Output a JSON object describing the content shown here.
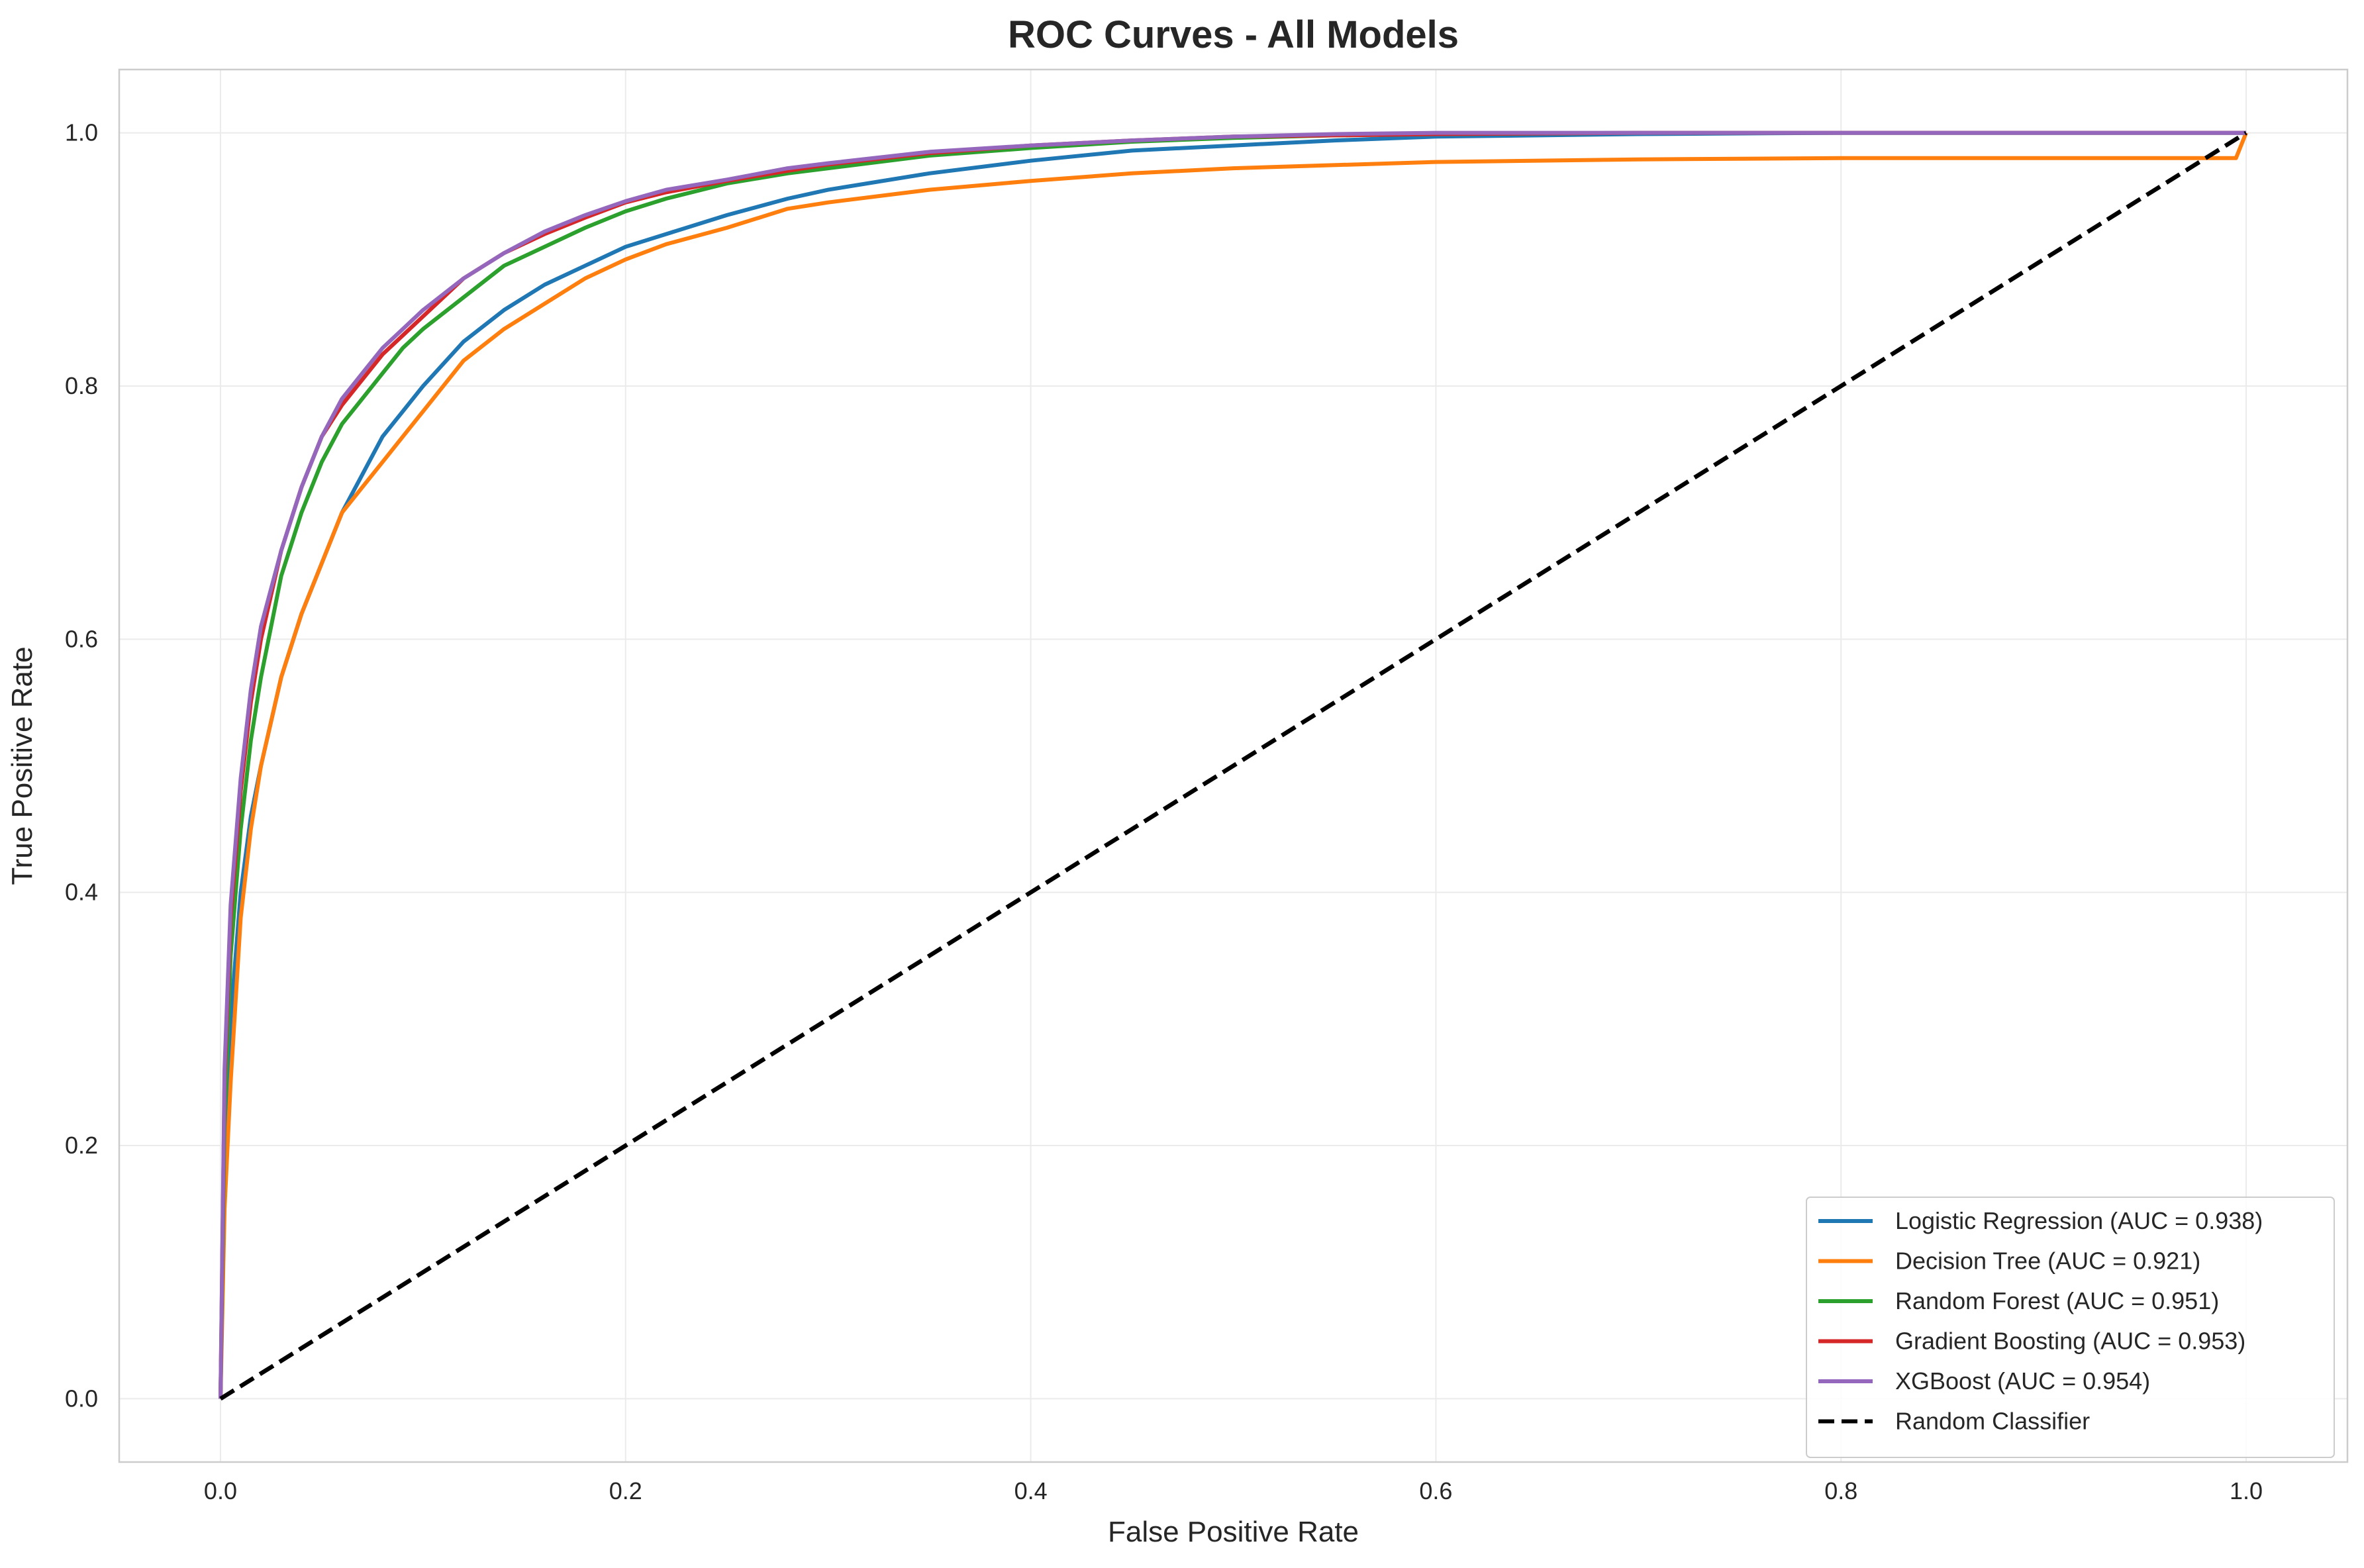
{
  "chart_data": {
    "type": "line",
    "title": "ROC Curves - All Models",
    "xlabel": "False Positive Rate",
    "ylabel": "True Positive Rate",
    "xlim": [
      -0.05,
      1.05
    ],
    "ylim": [
      -0.05,
      1.05
    ],
    "xticks": [
      "0.0",
      "0.2",
      "0.4",
      "0.6",
      "0.8",
      "1.0"
    ],
    "yticks": [
      "0.0",
      "0.2",
      "0.4",
      "0.6",
      "0.8",
      "1.0"
    ],
    "grid": true,
    "legend_position": "lower-right",
    "series": [
      {
        "name": "Logistic Regression (AUC = 0.938)",
        "color": "#1f77b4",
        "x": [
          0,
          0.002,
          0.005,
          0.01,
          0.015,
          0.02,
          0.03,
          0.04,
          0.05,
          0.06,
          0.07,
          0.08,
          0.09,
          0.1,
          0.12,
          0.14,
          0.16,
          0.18,
          0.2,
          0.22,
          0.25,
          0.28,
          0.3,
          0.35,
          0.4,
          0.45,
          0.5,
          0.55,
          0.6,
          0.7,
          0.8,
          0.9,
          1.0
        ],
        "y": [
          0,
          0.2,
          0.3,
          0.4,
          0.46,
          0.5,
          0.57,
          0.62,
          0.66,
          0.7,
          0.73,
          0.76,
          0.78,
          0.8,
          0.835,
          0.86,
          0.88,
          0.895,
          0.91,
          0.92,
          0.935,
          0.948,
          0.955,
          0.968,
          0.978,
          0.986,
          0.99,
          0.994,
          0.997,
          0.999,
          1.0,
          1.0,
          1.0
        ]
      },
      {
        "name": "Decision Tree (AUC = 0.921)",
        "color": "#ff7f0e",
        "x": [
          0,
          0.002,
          0.005,
          0.01,
          0.015,
          0.02,
          0.03,
          0.04,
          0.05,
          0.06,
          0.07,
          0.08,
          0.09,
          0.1,
          0.12,
          0.14,
          0.16,
          0.18,
          0.2,
          0.22,
          0.25,
          0.28,
          0.3,
          0.35,
          0.4,
          0.45,
          0.5,
          0.6,
          0.7,
          0.8,
          0.9,
          0.995,
          1.0
        ],
        "y": [
          0,
          0.15,
          0.25,
          0.38,
          0.45,
          0.5,
          0.57,
          0.62,
          0.66,
          0.7,
          0.72,
          0.74,
          0.76,
          0.78,
          0.82,
          0.845,
          0.865,
          0.885,
          0.9,
          0.912,
          0.925,
          0.94,
          0.945,
          0.955,
          0.962,
          0.968,
          0.972,
          0.977,
          0.979,
          0.98,
          0.98,
          0.98,
          1.0
        ]
      },
      {
        "name": "Random Forest (AUC = 0.951)",
        "color": "#2ca02c",
        "x": [
          0,
          0.002,
          0.005,
          0.01,
          0.015,
          0.02,
          0.03,
          0.04,
          0.05,
          0.06,
          0.07,
          0.08,
          0.09,
          0.1,
          0.12,
          0.14,
          0.16,
          0.18,
          0.2,
          0.22,
          0.25,
          0.28,
          0.3,
          0.35,
          0.4,
          0.45,
          0.5,
          0.55,
          0.6,
          0.7,
          0.8,
          0.9,
          1.0
        ],
        "y": [
          0,
          0.22,
          0.35,
          0.45,
          0.52,
          0.57,
          0.65,
          0.7,
          0.74,
          0.77,
          0.79,
          0.81,
          0.83,
          0.845,
          0.87,
          0.895,
          0.91,
          0.925,
          0.938,
          0.948,
          0.96,
          0.968,
          0.972,
          0.982,
          0.988,
          0.993,
          0.996,
          0.998,
          0.999,
          1.0,
          1.0,
          1.0,
          1.0
        ]
      },
      {
        "name": "Gradient Boosting (AUC = 0.953)",
        "color": "#d62728",
        "x": [
          0,
          0.002,
          0.005,
          0.01,
          0.015,
          0.02,
          0.03,
          0.04,
          0.05,
          0.06,
          0.07,
          0.08,
          0.09,
          0.1,
          0.12,
          0.14,
          0.16,
          0.18,
          0.2,
          0.22,
          0.25,
          0.28,
          0.3,
          0.35,
          0.4,
          0.45,
          0.5,
          0.55,
          0.6,
          0.7,
          0.8,
          0.9,
          1.0
        ],
        "y": [
          0,
          0.25,
          0.38,
          0.48,
          0.55,
          0.6,
          0.67,
          0.72,
          0.76,
          0.785,
          0.805,
          0.825,
          0.84,
          0.855,
          0.885,
          0.905,
          0.92,
          0.933,
          0.945,
          0.953,
          0.962,
          0.97,
          0.975,
          0.984,
          0.99,
          0.994,
          0.997,
          0.998,
          0.999,
          1.0,
          1.0,
          1.0,
          1.0
        ]
      },
      {
        "name": "XGBoost (AUC = 0.954)",
        "color": "#9467bd",
        "x": [
          0,
          0.002,
          0.005,
          0.01,
          0.015,
          0.02,
          0.03,
          0.04,
          0.05,
          0.06,
          0.07,
          0.08,
          0.09,
          0.1,
          0.12,
          0.14,
          0.16,
          0.18,
          0.2,
          0.22,
          0.25,
          0.28,
          0.3,
          0.35,
          0.4,
          0.45,
          0.5,
          0.55,
          0.6,
          0.7,
          0.8,
          0.9,
          1.0
        ],
        "y": [
          0,
          0.26,
          0.39,
          0.49,
          0.56,
          0.61,
          0.67,
          0.72,
          0.76,
          0.79,
          0.81,
          0.83,
          0.845,
          0.86,
          0.885,
          0.905,
          0.922,
          0.935,
          0.946,
          0.955,
          0.963,
          0.972,
          0.976,
          0.985,
          0.99,
          0.994,
          0.997,
          0.999,
          1.0,
          1.0,
          1.0,
          1.0,
          1.0
        ]
      },
      {
        "name": "Random Classifier",
        "color": "#000000",
        "dashed": true,
        "x": [
          0,
          1
        ],
        "y": [
          0,
          1
        ]
      }
    ]
  }
}
